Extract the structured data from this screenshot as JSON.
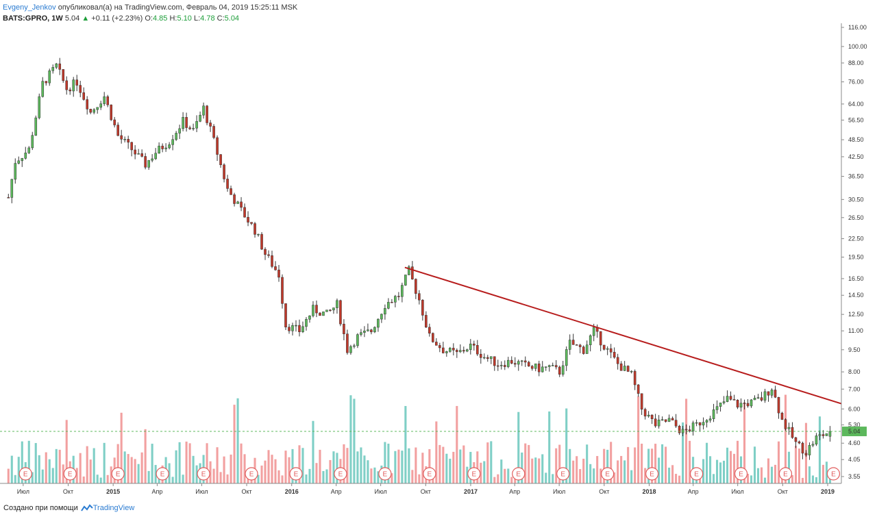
{
  "header": {
    "author": "Evgeny_Jenkov",
    "published": "опубликовал(а) на TradingView.com, Февраль 04, 2019 15:25:11 MSK",
    "symbol": "BATS:GPRO, 1W",
    "last": "5.04",
    "arrow": "▲",
    "change": "+0.11 (+2.23%)",
    "o_label": "O:",
    "o_value": "4.85",
    "h_label": "H:",
    "h_value": "5.10",
    "l_label": "L:",
    "l_value": "4.78",
    "c_label": "C:",
    "c_value": "5.04"
  },
  "footer": {
    "text": "Создано при помощи",
    "brand": "TradingView"
  },
  "colors": {
    "up": "#5cb85c",
    "down": "#c0392b",
    "vol_up": "#7fcfc6",
    "vol_down": "#f2a0a0",
    "trendline": "#b71c1c",
    "last_price_line": "#5cb85c",
    "earnings": "#e05a5a"
  },
  "chart_data": {
    "type": "candlestick",
    "scale": "log",
    "interval": "1W",
    "price_axis_labels": [
      "116.00",
      "100.00",
      "88.00",
      "76.00",
      "64.00",
      "56.50",
      "48.50",
      "42.50",
      "36.50",
      "30.50",
      "26.50",
      "22.50",
      "19.50",
      "16.50",
      "14.50",
      "12.50",
      "11.00",
      "9.50",
      "8.00",
      "7.00",
      "6.00",
      "5.30",
      "4.60",
      "4.05",
      "3.55"
    ],
    "time_axis_labels": [
      {
        "label": "Июл",
        "bold": false
      },
      {
        "label": "Окт",
        "bold": false
      },
      {
        "label": "2015",
        "bold": true
      },
      {
        "label": "Апр",
        "bold": false
      },
      {
        "label": "Июл",
        "bold": false
      },
      {
        "label": "Окт",
        "bold": false
      },
      {
        "label": "2016",
        "bold": true
      },
      {
        "label": "Апр",
        "bold": false
      },
      {
        "label": "Июл",
        "bold": false
      },
      {
        "label": "Окт",
        "bold": false
      },
      {
        "label": "2017",
        "bold": true
      },
      {
        "label": "Апр",
        "bold": false
      },
      {
        "label": "Июл",
        "bold": false
      },
      {
        "label": "Окт",
        "bold": false
      },
      {
        "label": "2018",
        "bold": true
      },
      {
        "label": "Апр",
        "bold": false
      },
      {
        "label": "Июл",
        "bold": false
      },
      {
        "label": "Окт",
        "bold": false
      },
      {
        "label": "2019",
        "bold": true
      }
    ],
    "last_price": 5.04,
    "last_price_label": "5.04",
    "earnings_marker": "E",
    "earnings_count": 19,
    "price_path": [
      [
        "2014-06-26",
        31
      ],
      [
        "2014-07-10",
        41
      ],
      [
        "2014-08-07",
        45
      ],
      [
        "2014-09-04",
        75
      ],
      [
        "2014-10-02",
        86
      ],
      [
        "2014-10-23",
        72
      ],
      [
        "2014-11-13",
        76
      ],
      [
        "2014-12-11",
        60
      ],
      [
        "2015-01-08",
        68
      ],
      [
        "2015-02-05",
        50
      ],
      [
        "2015-03-05",
        45
      ],
      [
        "2015-04-02",
        40
      ],
      [
        "2015-04-23",
        44
      ],
      [
        "2015-05-21",
        48
      ],
      [
        "2015-06-18",
        56
      ],
      [
        "2015-07-09",
        52
      ],
      [
        "2015-07-30",
        62
      ],
      [
        "2015-08-20",
        48
      ],
      [
        "2015-09-17",
        33
      ],
      [
        "2015-10-15",
        28
      ],
      [
        "2015-11-12",
        24
      ],
      [
        "2015-12-03",
        20
      ],
      [
        "2015-12-31",
        17
      ],
      [
        "2016-01-14",
        11.5
      ],
      [
        "2016-02-11",
        11
      ],
      [
        "2016-03-10",
        13
      ],
      [
        "2016-04-07",
        12.5
      ],
      [
        "2016-04-28",
        13.5
      ],
      [
        "2016-05-19",
        9.5
      ],
      [
        "2016-06-09",
        10.5
      ],
      [
        "2016-07-07",
        11
      ],
      [
        "2016-08-04",
        13.5
      ],
      [
        "2016-09-01",
        14.5
      ],
      [
        "2016-09-22",
        17.5
      ],
      [
        "2016-10-13",
        14
      ],
      [
        "2016-11-03",
        10.5
      ],
      [
        "2016-12-01",
        9.5
      ],
      [
        "2016-12-29",
        9.2
      ],
      [
        "2017-01-26",
        9.8
      ],
      [
        "2017-02-23",
        9
      ],
      [
        "2017-03-23",
        8.5
      ],
      [
        "2017-04-20",
        8.7
      ],
      [
        "2017-05-18",
        8.4
      ],
      [
        "2017-06-15",
        8.2
      ],
      [
        "2017-07-06",
        8.3
      ],
      [
        "2017-07-27",
        8
      ],
      [
        "2017-08-17",
        10
      ],
      [
        "2017-09-14",
        9.5
      ],
      [
        "2017-10-05",
        11
      ],
      [
        "2017-10-26",
        9.8
      ],
      [
        "2017-11-23",
        8.5
      ],
      [
        "2017-12-21",
        7.8
      ],
      [
        "2018-01-11",
        6
      ],
      [
        "2018-02-08",
        5.3
      ],
      [
        "2018-03-08",
        5.5
      ],
      [
        "2018-04-05",
        5
      ],
      [
        "2018-05-03",
        5.3
      ],
      [
        "2018-06-14",
        6
      ],
      [
        "2018-07-05",
        6.5
      ],
      [
        "2018-07-26",
        6.2
      ],
      [
        "2018-08-23",
        6.3
      ],
      [
        "2018-09-13",
        6.5
      ],
      [
        "2018-10-04",
        7.1
      ],
      [
        "2018-10-25",
        5.5
      ],
      [
        "2018-11-22",
        4.6
      ],
      [
        "2018-12-13",
        4.3
      ],
      [
        "2019-01-03",
        4.8
      ],
      [
        "2019-02-01",
        5.04
      ]
    ],
    "trendline": [
      [
        "2016-09-22",
        18
      ],
      [
        "2019-02-01",
        6.25
      ]
    ],
    "earnings_dates": [
      "2014-07-31",
      "2014-10-30",
      "2015-02-05",
      "2015-05-07",
      "2015-07-30",
      "2015-11-05",
      "2016-02-04",
      "2016-05-05",
      "2016-08-04",
      "2016-11-03",
      "2017-02-02",
      "2017-05-04",
      "2017-08-03",
      "2017-11-02",
      "2018-02-01",
      "2018-05-03",
      "2018-08-02",
      "2018-11-01",
      "2019-02-07"
    ]
  }
}
